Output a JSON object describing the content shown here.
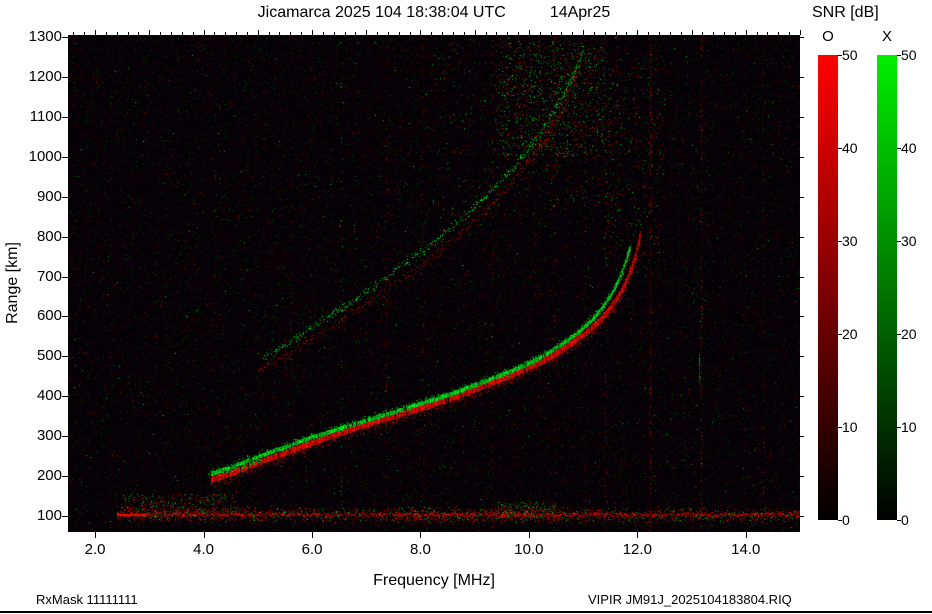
{
  "header": {
    "title_main": "Jicamarca 2025 104 18:38:04 UTC",
    "title_date": "14Apr25"
  },
  "footer": {
    "rxmask": "RxMask 11111111",
    "file": "VIPIR  JM91J_2025104183804.RIQ"
  },
  "colorbar": {
    "title": "SNR [dB]",
    "o_label": "O",
    "x_label": "X",
    "ticks": [
      0,
      10,
      20,
      30,
      40,
      50
    ],
    "o_color": "#ff0000",
    "x_color": "#00ee00"
  },
  "chart_data": {
    "type": "heatmap",
    "title": "Jicamarca 2025 104 18:38:04 UTC  14Apr25",
    "xlabel": "Frequency [MHz]",
    "ylabel": "Range [km]",
    "xlim": [
      1.5,
      15.0
    ],
    "ylim": [
      60,
      1305
    ],
    "xticks": [
      2,
      4,
      6,
      8,
      10,
      12,
      14
    ],
    "xtick_labels": [
      "2.0",
      "4.0",
      "6.0",
      "8.0",
      "10.0",
      "12.0",
      "14.0"
    ],
    "yticks": [
      100,
      200,
      300,
      400,
      500,
      600,
      700,
      800,
      900,
      1000,
      1100,
      1200,
      1300
    ],
    "snr_range": [
      0,
      50
    ],
    "background": "#060106",
    "legend": {
      "O_mode_color": "red",
      "X_mode_color": "green",
      "units": "SNR [dB]"
    },
    "noise": {
      "count": 22000,
      "red_frac": 0.55
    },
    "traces": [
      {
        "name": "F2-second-hop-O",
        "mode": "O",
        "style": "speckle",
        "density": 0.7,
        "fuzz": 6,
        "bright": 0.8,
        "points": [
          [
            5.0,
            462
          ],
          [
            5.6,
            510
          ],
          [
            6.2,
            560
          ],
          [
            6.8,
            612
          ],
          [
            7.4,
            668
          ],
          [
            8.0,
            726
          ],
          [
            8.6,
            790
          ],
          [
            9.1,
            852
          ],
          [
            9.6,
            920
          ],
          [
            10.0,
            988
          ],
          [
            10.35,
            1056
          ],
          [
            10.6,
            1118
          ],
          [
            10.8,
            1178
          ],
          [
            10.95,
            1235
          ]
        ]
      },
      {
        "name": "F2-second-hop-X",
        "mode": "X",
        "style": "speckle",
        "density": 0.85,
        "fuzz": 5,
        "bright": 1.0,
        "points": [
          [
            5.1,
            495
          ],
          [
            5.7,
            545
          ],
          [
            6.3,
            598
          ],
          [
            6.9,
            652
          ],
          [
            7.5,
            710
          ],
          [
            8.1,
            770
          ],
          [
            8.7,
            836
          ],
          [
            9.2,
            900
          ],
          [
            9.7,
            970
          ],
          [
            10.1,
            1040
          ],
          [
            10.45,
            1110
          ],
          [
            10.7,
            1170
          ],
          [
            10.9,
            1230
          ],
          [
            11.0,
            1270
          ]
        ]
      },
      {
        "name": "F2-main-O",
        "mode": "O",
        "style": "solid",
        "half": 3,
        "fuzz": 8,
        "points": [
          [
            4.15,
            190
          ],
          [
            4.4,
            200
          ],
          [
            4.7,
            215
          ],
          [
            5.0,
            232
          ],
          [
            5.4,
            252
          ],
          [
            5.8,
            272
          ],
          [
            6.2,
            292
          ],
          [
            6.6,
            310
          ],
          [
            7.0,
            328
          ],
          [
            7.4,
            344
          ],
          [
            7.8,
            360
          ],
          [
            8.2,
            377
          ],
          [
            8.6,
            395
          ],
          [
            9.0,
            415
          ],
          [
            9.4,
            436
          ],
          [
            9.8,
            458
          ],
          [
            10.2,
            482
          ],
          [
            10.5,
            505
          ],
          [
            10.8,
            532
          ],
          [
            11.1,
            562
          ],
          [
            11.35,
            594
          ],
          [
            11.55,
            628
          ],
          [
            11.72,
            664
          ],
          [
            11.85,
            702
          ],
          [
            11.95,
            742
          ],
          [
            12.02,
            780
          ],
          [
            12.06,
            805
          ]
        ]
      },
      {
        "name": "F2-main-X",
        "mode": "X",
        "style": "solid",
        "half": 2,
        "fuzz": 5,
        "points": [
          [
            4.15,
            204
          ],
          [
            4.5,
            220
          ],
          [
            5.0,
            247
          ],
          [
            5.5,
            271
          ],
          [
            6.0,
            296
          ],
          [
            6.5,
            317
          ],
          [
            7.0,
            338
          ],
          [
            7.5,
            358
          ],
          [
            8.0,
            380
          ],
          [
            8.5,
            401
          ],
          [
            9.0,
            426
          ],
          [
            9.5,
            452
          ],
          [
            10.0,
            480
          ],
          [
            10.35,
            506
          ],
          [
            10.65,
            532
          ],
          [
            10.95,
            562
          ],
          [
            11.2,
            594
          ],
          [
            11.4,
            628
          ],
          [
            11.57,
            664
          ],
          [
            11.7,
            702
          ],
          [
            11.8,
            740
          ],
          [
            11.87,
            770
          ]
        ]
      },
      {
        "name": "trace-start-blob",
        "mode": "X",
        "style": "speckle",
        "density": 1.0,
        "fuzz": 5,
        "bright": 1.1,
        "points": [
          [
            4.1,
            206
          ],
          [
            4.35,
            212
          ],
          [
            4.6,
            219
          ],
          [
            4.9,
            230
          ],
          [
            5.1,
            242
          ]
        ]
      }
    ],
    "scatter_regions": [
      {
        "f": [
          9.4,
          11.4
        ],
        "r": [
          1000,
          1290
        ],
        "n": 1100,
        "green_frac": 0.55
      },
      {
        "f": [
          8.2,
          11.7
        ],
        "r": [
          850,
          1300
        ],
        "n": 450,
        "green_frac": 0.5
      },
      {
        "f": [
          11.4,
          12.5
        ],
        "r": [
          700,
          1260
        ],
        "n": 320,
        "green_frac": 0.45
      },
      {
        "f": [
          9.4,
          10.5
        ],
        "r": [
          95,
          135
        ],
        "n": 260,
        "green_frac": 0.5
      },
      {
        "f": [
          2.5,
          4.6
        ],
        "r": [
          100,
          155
        ],
        "n": 380,
        "green_frac": 0.4
      }
    ],
    "rfi_lines": [
      {
        "f": 5.62,
        "color": "r",
        "density": 0.1
      },
      {
        "f": 7.38,
        "color": "r",
        "density": 0.1
      },
      {
        "f": 8.03,
        "color": "r",
        "density": 0.14
      },
      {
        "f": 9.33,
        "color": "r",
        "density": 0.12
      },
      {
        "f": 10.47,
        "color": "r",
        "density": 0.1
      },
      {
        "f": 11.05,
        "color": "r",
        "density": 0.12
      },
      {
        "f": 11.42,
        "color": "r",
        "density": 0.16
      },
      {
        "f": 12.25,
        "color": "r",
        "density": 0.34
      },
      {
        "f": 13.18,
        "color": "r",
        "density": 0.32
      },
      {
        "f": 14.32,
        "color": "r",
        "density": 0.1
      },
      {
        "f": 13.15,
        "color": "g",
        "density": 0.85,
        "r_range": [
          430,
          505
        ]
      },
      {
        "f": 6.55,
        "color": "g",
        "density": 0.06
      }
    ],
    "noise_band": {
      "r_center": 102,
      "f_range": [
        2.4,
        15.0
      ],
      "core_bright_f": [
        2.4,
        2.95
      ],
      "dense_f": [
        7.5,
        10.6
      ],
      "green_frac": 0.2
    }
  }
}
